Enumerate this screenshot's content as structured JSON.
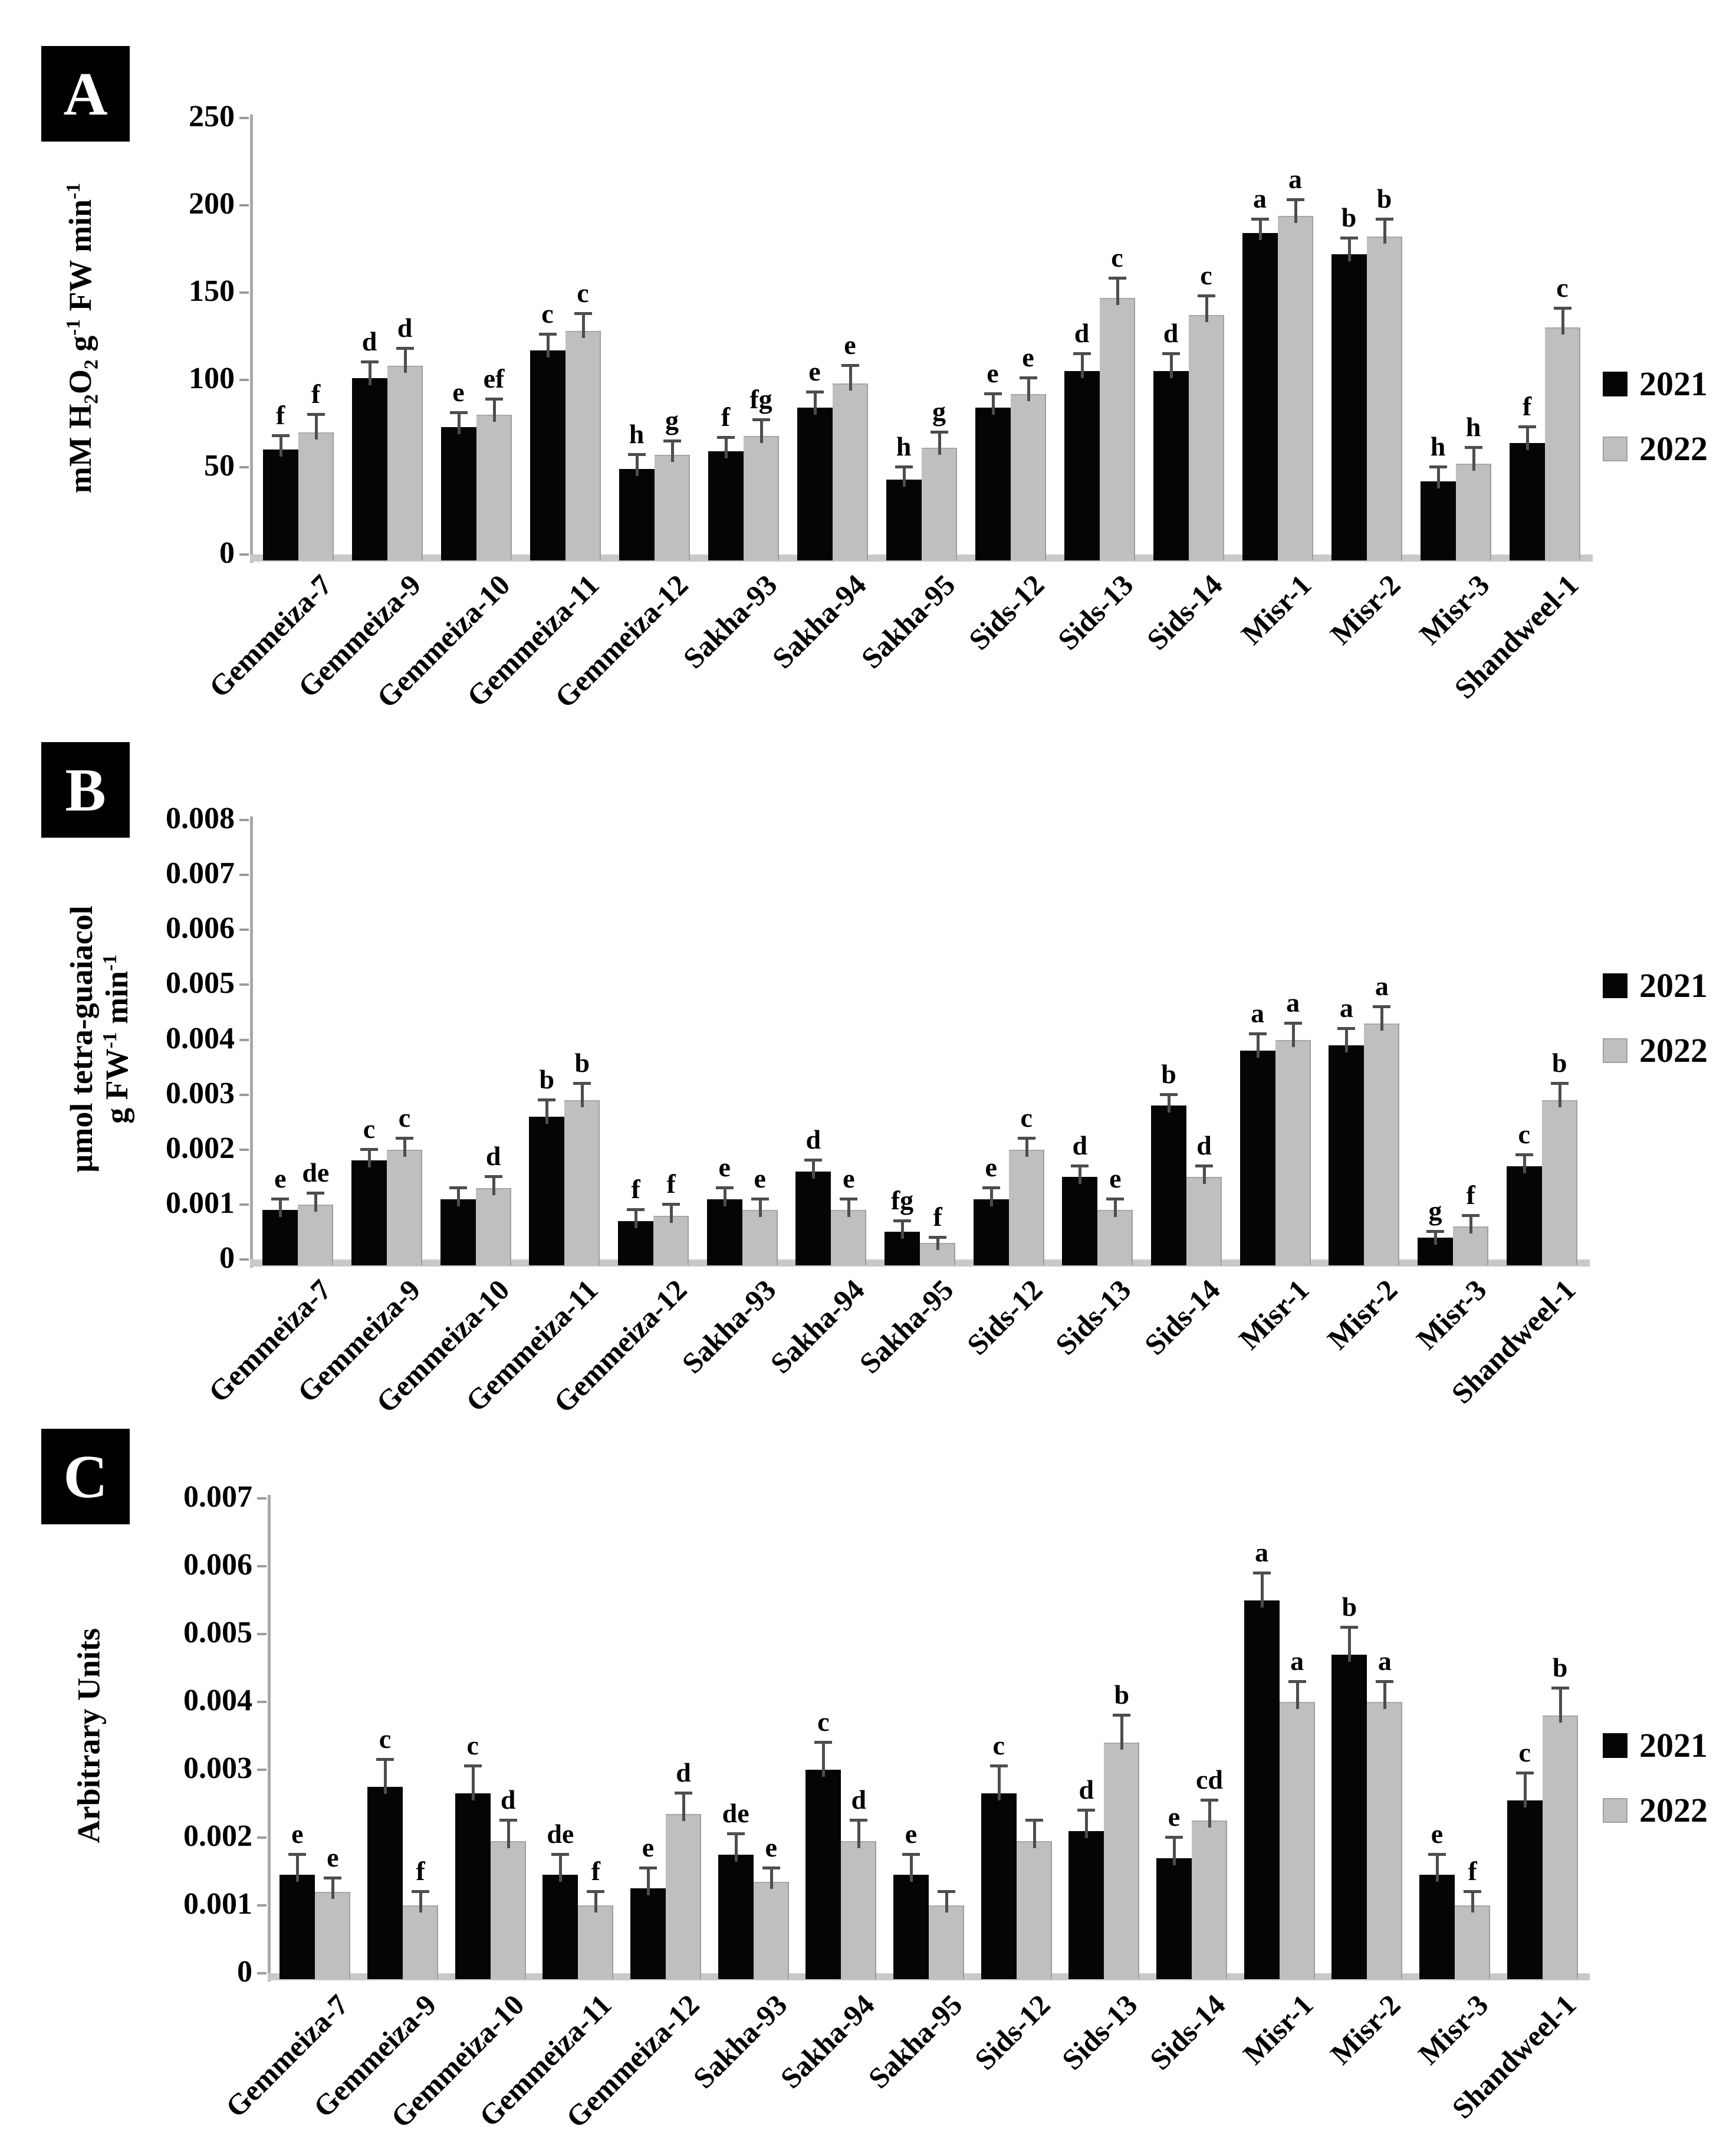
{
  "figure_title": "",
  "legend_colors": {
    "y2021": "#000000",
    "y2022": "#bfbfbf"
  },
  "chart_data": [
    {
      "type": "bar",
      "panel_label": "A",
      "ylabel": "mM H₂O₂ g⁻¹ FW min⁻¹",
      "y_title_lines": [
        [
          {
            "t": "mM H"
          },
          {
            "t": "2",
            "s": "sub"
          },
          {
            "t": "O"
          },
          {
            "t": "2",
            "s": "sub"
          },
          {
            "t": " g"
          },
          {
            "t": "-1",
            "s": "sup"
          },
          {
            "t": " FW min"
          },
          {
            "t": "-1",
            "s": "sup"
          }
        ]
      ],
      "ylim": [
        0,
        250
      ],
      "ytick_labels": [
        "0",
        "50",
        "100",
        "150",
        "200",
        "250"
      ],
      "grid": false,
      "legend_position": "right",
      "categories": [
        "Gemmeiza-7",
        "Gemmeiza-9",
        "Gemmeiza-10",
        "Gemmeiza-11",
        "Gemmeiza-12",
        "Sakha-93",
        "Sakha-94",
        "Sakha-95",
        "Sids-12",
        "Sids-13",
        "Sids-14",
        "Misr-1",
        "Misr-2",
        "Misr-3",
        "Shandweel-1"
      ],
      "series": [
        {
          "name": "2021",
          "color": "#050505",
          "values": [
            60,
            101,
            73,
            117,
            49,
            59,
            84,
            43,
            84,
            105,
            105,
            184,
            172,
            42,
            64
          ],
          "errors": [
            8,
            9,
            8,
            9,
            8,
            8,
            9,
            7,
            8,
            10,
            10,
            8,
            9,
            8,
            9
          ],
          "letters": [
            "f",
            "d",
            "e",
            "c",
            "h",
            "f",
            "e",
            "h",
            "e",
            "d",
            "d",
            "a",
            "b",
            "h",
            "f"
          ]
        },
        {
          "name": "2022",
          "color": "#bfbfbf",
          "values": [
            70,
            108,
            80,
            128,
            57,
            68,
            98,
            61,
            92,
            147,
            137,
            194,
            182,
            52,
            130
          ],
          "errors": [
            10,
            10,
            9,
            10,
            8,
            9,
            10,
            9,
            9,
            11,
            11,
            9,
            10,
            9,
            11
          ],
          "letters": [
            "f",
            "d",
            "ef",
            "c",
            "g",
            "fg",
            "e",
            "g",
            "e",
            "c",
            "c",
            "a",
            "b",
            "h",
            "c"
          ]
        }
      ],
      "legend": [
        {
          "label": "2021",
          "color": "#050505"
        },
        {
          "label": "2022",
          "color": "#bfbfbf"
        }
      ]
    },
    {
      "type": "bar",
      "panel_label": "B",
      "ylabel": "µmol tetra-guaiacol g FW⁻¹ min⁻¹",
      "y_title_lines": [
        [
          {
            "t": "µmol tetra-guaiacol"
          }
        ],
        [
          {
            "t": "g FW"
          },
          {
            "t": "-1",
            "s": "sup"
          },
          {
            "t": " min"
          },
          {
            "t": "-1",
            "s": "sup"
          }
        ]
      ],
      "ylim": [
        0,
        0.008
      ],
      "ytick_labels": [
        "0",
        "0.001",
        "0.002",
        "0.003",
        "0.004",
        "0.005",
        "0.006",
        "0.007",
        "0.008"
      ],
      "grid": false,
      "legend_position": "right",
      "categories": [
        "Gemmeiza-7",
        "Gemmeiza-9",
        "Gemmeiza-10",
        "Gemmeiza-11",
        "Gemmeiza-12",
        "Sakha-93",
        "Sakha-94",
        "Sakha-95",
        "Sids-12",
        "Sids-13",
        "Sids-14",
        "Misr-1",
        "Misr-2",
        "Misr-3",
        "Shandweel-1"
      ],
      "series": [
        {
          "name": "2021",
          "color": "#050505",
          "values": [
            0.0009,
            0.0018,
            0.0011,
            0.0026,
            0.0007,
            0.0011,
            0.0016,
            0.0005,
            0.0011,
            0.0015,
            0.0028,
            0.0038,
            0.0039,
            0.0004,
            0.0017
          ],
          "errors": [
            0.0002,
            0.0002,
            0.0002,
            0.0003,
            0.0002,
            0.0002,
            0.0002,
            0.0002,
            0.0002,
            0.0002,
            0.0002,
            0.0003,
            0.0003,
            0.0001,
            0.0002
          ],
          "letters": [
            "e",
            "c",
            "",
            "b",
            "f",
            "e",
            "d",
            "fg",
            "e",
            "d",
            "b",
            "a",
            "a",
            "g",
            "c"
          ]
        },
        {
          "name": "2022",
          "color": "#bfbfbf",
          "values": [
            0.001,
            0.002,
            0.0013,
            0.0029,
            0.0008,
            0.0009,
            0.0009,
            0.0003,
            0.002,
            0.0009,
            0.0015,
            0.004,
            0.0043,
            0.0006,
            0.0029
          ],
          "errors": [
            0.0002,
            0.0002,
            0.0002,
            0.0003,
            0.0002,
            0.0002,
            0.0002,
            0.0001,
            0.0002,
            0.0002,
            0.0002,
            0.0003,
            0.0003,
            0.0002,
            0.0003
          ],
          "letters": [
            "de",
            "c",
            "d",
            "b",
            "f",
            "e",
            "e",
            "f",
            "c",
            "e",
            "d",
            "a",
            "a",
            "f",
            "b"
          ]
        }
      ],
      "legend": [
        {
          "label": "2021",
          "color": "#050505"
        },
        {
          "label": "2022",
          "color": "#bfbfbf"
        }
      ]
    },
    {
      "type": "bar",
      "panel_label": "C",
      "ylabel": "Arbitrary Units",
      "y_title_lines": [
        [
          {
            "t": "Arbitrary  Units"
          }
        ]
      ],
      "ylim": [
        0,
        0.007
      ],
      "ytick_labels": [
        "0",
        "0.001",
        "0.002",
        "0.003",
        "0.004",
        "0.005",
        "0.006",
        "0.007"
      ],
      "grid": false,
      "legend_position": "right",
      "categories": [
        "Gemmeiza-7",
        "Gemmeiza-9",
        "Gemmeiza-10",
        "Gemmeiza-11",
        "Gemmeiza-12",
        "Sakha-93",
        "Sakha-94",
        "Sakha-95",
        "Sids-12",
        "Sids-13",
        "Sids-14",
        "Misr-1",
        "Misr-2",
        "Misr-3",
        "Shandweel-1"
      ],
      "series": [
        {
          "name": "2021",
          "color": "#050505",
          "values": [
            0.00145,
            0.00275,
            0.00265,
            0.00145,
            0.00125,
            0.00175,
            0.003,
            0.00145,
            0.00265,
            0.0021,
            0.0017,
            0.0055,
            0.0047,
            0.00145,
            0.00255
          ],
          "errors": [
            0.0003,
            0.0004,
            0.0004,
            0.0003,
            0.0003,
            0.0003,
            0.0004,
            0.0003,
            0.0004,
            0.0003,
            0.0003,
            0.0004,
            0.0004,
            0.0003,
            0.0004
          ],
          "letters": [
            "e",
            "c",
            "c",
            "de",
            "e",
            "de",
            "c",
            "e",
            "c",
            "d",
            "e",
            "a",
            "b",
            "e",
            "c"
          ]
        },
        {
          "name": "2022",
          "color": "#bfbfbf",
          "values": [
            0.0012,
            0.001,
            0.00195,
            0.001,
            0.00235,
            0.00135,
            0.00195,
            0.001,
            0.00195,
            0.0034,
            0.00225,
            0.004,
            0.004,
            0.001,
            0.0038
          ],
          "errors": [
            0.0002,
            0.0002,
            0.0003,
            0.0002,
            0.0003,
            0.0002,
            0.0003,
            0.0002,
            0.0003,
            0.0004,
            0.0003,
            0.0003,
            0.0003,
            0.0002,
            0.0004
          ],
          "letters": [
            "e",
            "f",
            "d",
            "f",
            "d",
            "e",
            "d",
            "",
            "",
            "b",
            "cd",
            "a",
            "a",
            "f",
            "b"
          ]
        }
      ],
      "legend": [
        {
          "label": "2021",
          "color": "#050505"
        },
        {
          "label": "2022",
          "color": "#bfbfbf"
        }
      ]
    }
  ]
}
